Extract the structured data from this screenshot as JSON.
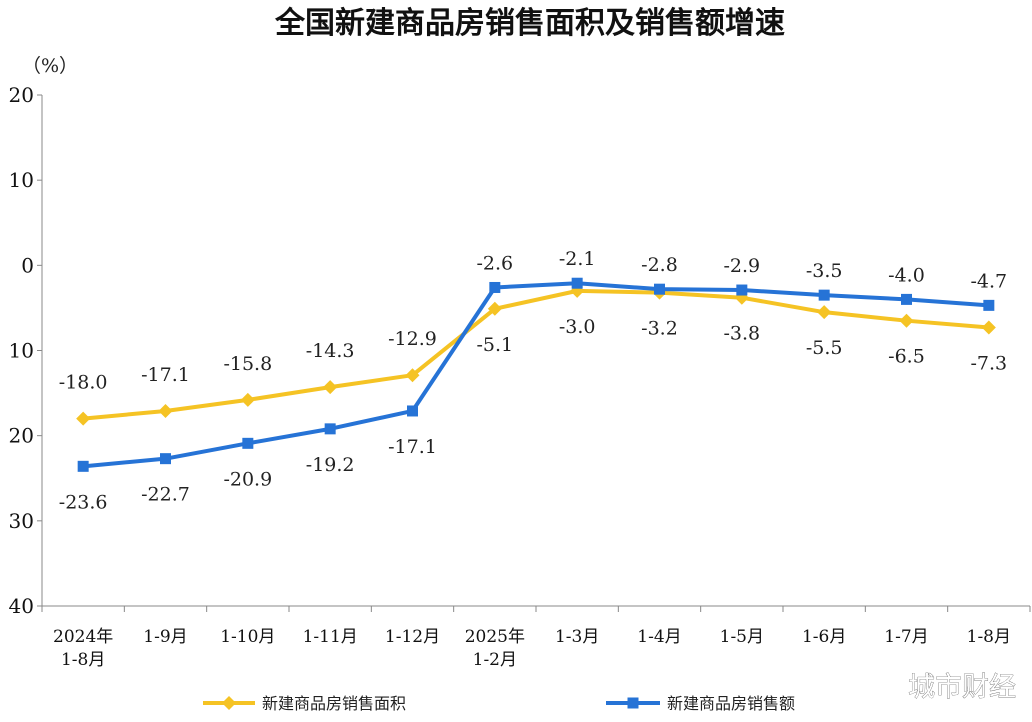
{
  "chart_data": {
    "type": "line",
    "title": "全国新建商品房销售面积及销售额增速",
    "unit_label": "（%）",
    "ylim": [
      -40,
      20
    ],
    "yticks": [
      20,
      10,
      0,
      -10,
      -20,
      -30,
      -40
    ],
    "ytick_labels": [
      "20",
      "10",
      "0",
      "10",
      "20",
      "30",
      "40"
    ],
    "categories": [
      [
        "2024年",
        "1-8月"
      ],
      [
        "1-9月"
      ],
      [
        "1-10月"
      ],
      [
        "1-11月"
      ],
      [
        "1-12月"
      ],
      [
        "2025年",
        "1-2月"
      ],
      [
        "1-3月"
      ],
      [
        "1-4月"
      ],
      [
        "1-5月"
      ],
      [
        "1-6月"
      ],
      [
        "1-7月"
      ],
      [
        "1-8月"
      ]
    ],
    "series": [
      {
        "name": "新建商品房销售面积",
        "color": "#f5c324",
        "marker": "diamond",
        "values": [
          -18.0,
          -17.1,
          -15.8,
          -14.3,
          -12.9,
          -5.1,
          -3.0,
          -3.2,
          -3.8,
          -5.5,
          -6.5,
          -7.3
        ],
        "labels": [
          "-18.0",
          "-17.1",
          "-15.8",
          "-14.3",
          "-12.9",
          "-5.1",
          "-3.0",
          "-3.2",
          "-3.8",
          "-5.5",
          "-6.5",
          "-7.3"
        ]
      },
      {
        "name": "新建商品房销售额",
        "color": "#2673d6",
        "marker": "square",
        "values": [
          -23.6,
          -22.7,
          -20.9,
          -19.2,
          -17.1,
          -2.6,
          -2.1,
          -2.8,
          -2.9,
          -3.5,
          -4.0,
          -4.7
        ],
        "labels": [
          "-23.6",
          "-22.7",
          "-20.9",
          "-19.2",
          "-17.1",
          "-2.6",
          "-2.1",
          "-2.8",
          "-2.9",
          "-3.5",
          "-4.0",
          "-4.7"
        ]
      }
    ],
    "grid": false,
    "legend_position": "bottom"
  },
  "watermark": "城市财经"
}
